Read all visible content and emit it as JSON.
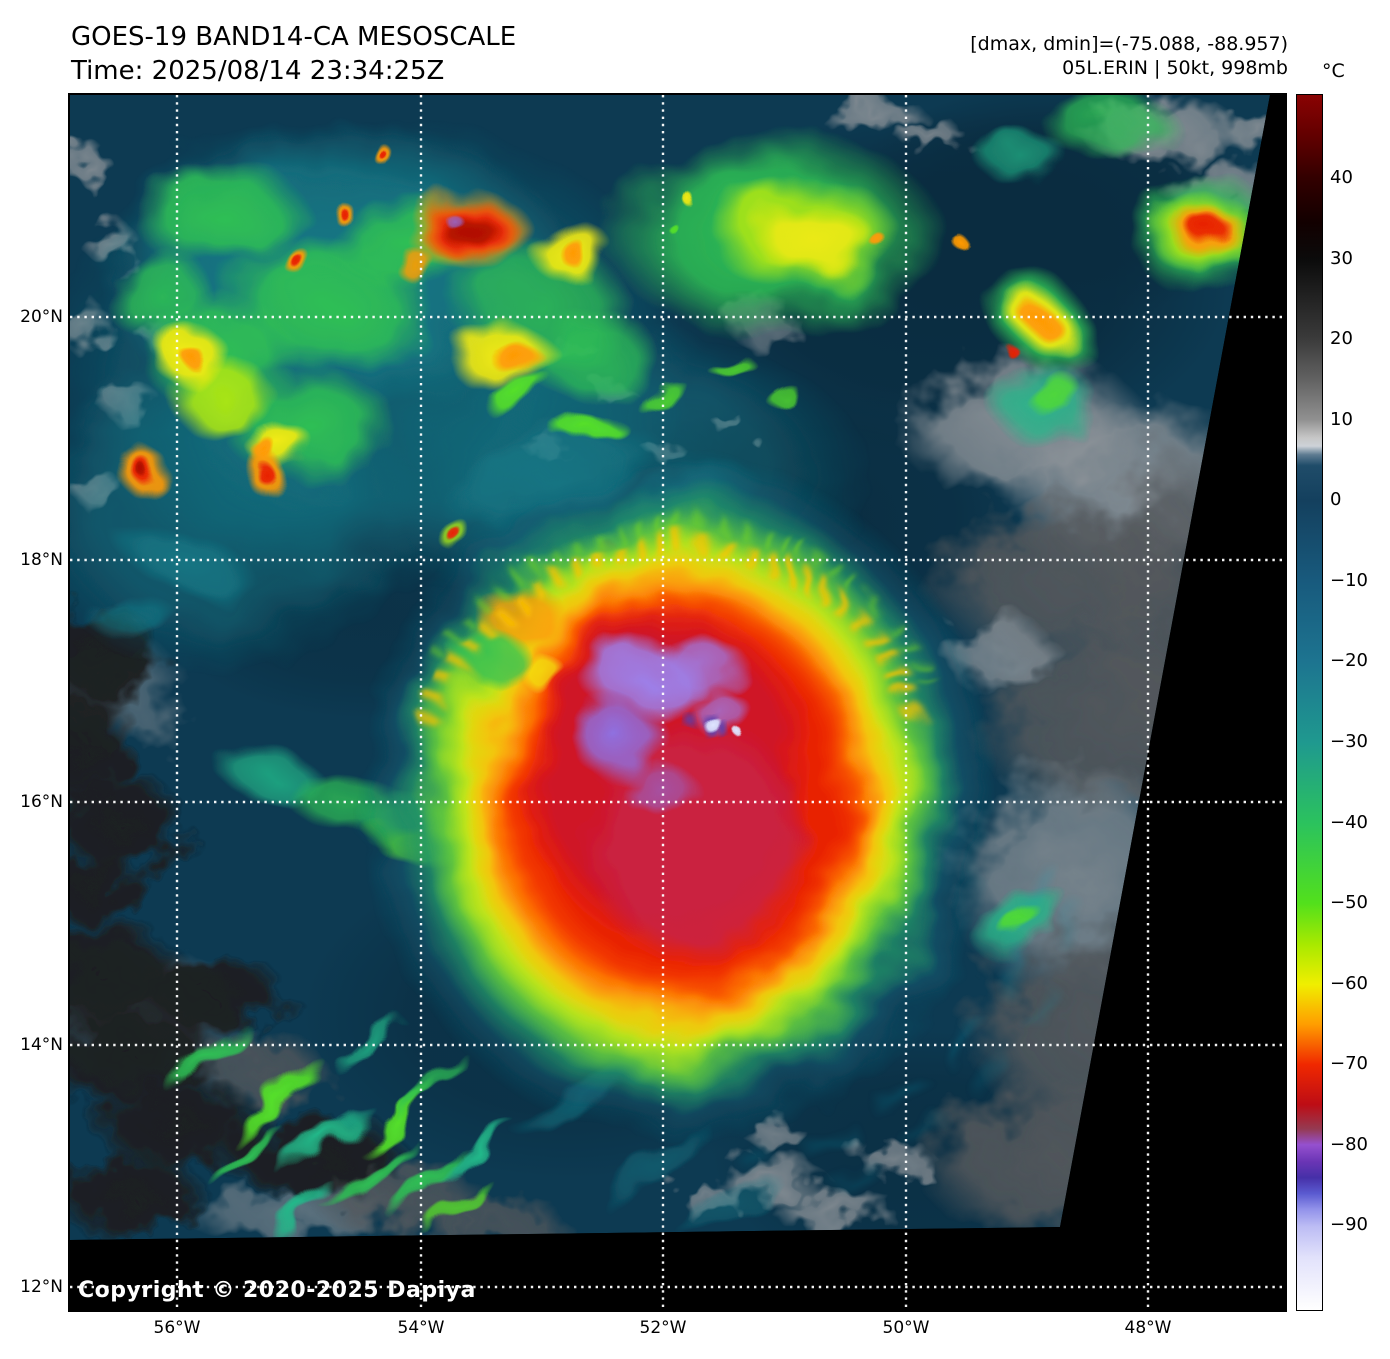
{
  "header": {
    "title": "GOES-19 BAND14-CA MESOSCALE",
    "time": "Time: 2025/08/14 23:34:25Z",
    "dminmax": "[dmax, dmin]=(-75.088, -88.957)",
    "storm": "05L.ERIN | 50kt, 998mb"
  },
  "map": {
    "copyright": "Copyright © 2020-2025 Dapiya"
  },
  "axes": {
    "lat_labels": [
      "20°N",
      "18°N",
      "16°N",
      "14°N",
      "12°N"
    ],
    "lon_labels": [
      "56°W",
      "54°W",
      "52°W",
      "50°W",
      "48°W"
    ]
  },
  "colorbar": {
    "unit": "°C",
    "ticks": [
      "40",
      "30",
      "20",
      "10",
      "0",
      "−10",
      "−20",
      "−30",
      "−40",
      "−50",
      "−60",
      "−70",
      "−80",
      "−90"
    ],
    "gradient_stops": [
      {
        "pct": 0,
        "color": "#8a0303"
      },
      {
        "pct": 3.5,
        "color": "#600000"
      },
      {
        "pct": 6.8,
        "color": "#330000"
      },
      {
        "pct": 10.5,
        "color": "#120000"
      },
      {
        "pct": 13.5,
        "color": "#0b0b0b"
      },
      {
        "pct": 20.0,
        "color": "#3a3a3a"
      },
      {
        "pct": 23.5,
        "color": "#636363"
      },
      {
        "pct": 26.7,
        "color": "#909090"
      },
      {
        "pct": 28.2,
        "color": "#c6c6c6"
      },
      {
        "pct": 28.9,
        "color": "#cdd2d8"
      },
      {
        "pct": 29.6,
        "color": "#5f7c92"
      },
      {
        "pct": 30.5,
        "color": "#1f4c69"
      },
      {
        "pct": 33.4,
        "color": "#14405e"
      },
      {
        "pct": 40.0,
        "color": "#185a7d"
      },
      {
        "pct": 46.6,
        "color": "#1d7490"
      },
      {
        "pct": 53.3,
        "color": "#1f998f"
      },
      {
        "pct": 59.9,
        "color": "#2bc25e"
      },
      {
        "pct": 66.5,
        "color": "#52e01c"
      },
      {
        "pct": 69.9,
        "color": "#a8e900"
      },
      {
        "pct": 73.2,
        "color": "#f0ee00"
      },
      {
        "pct": 76.5,
        "color": "#ff9d00"
      },
      {
        "pct": 79.8,
        "color": "#f02800"
      },
      {
        "pct": 83.1,
        "color": "#bd0d15"
      },
      {
        "pct": 85.1,
        "color": "#953a52"
      },
      {
        "pct": 86.4,
        "color": "#9550cf"
      },
      {
        "pct": 87.8,
        "color": "#6a35b5"
      },
      {
        "pct": 89.1,
        "color": "#4630a8"
      },
      {
        "pct": 90.4,
        "color": "#5a5ad0"
      },
      {
        "pct": 91.7,
        "color": "#9292ea"
      },
      {
        "pct": 93.1,
        "color": "#bcbcf4"
      },
      {
        "pct": 95.7,
        "color": "#e2e2fb"
      },
      {
        "pct": 100,
        "color": "#ffffff"
      }
    ]
  }
}
